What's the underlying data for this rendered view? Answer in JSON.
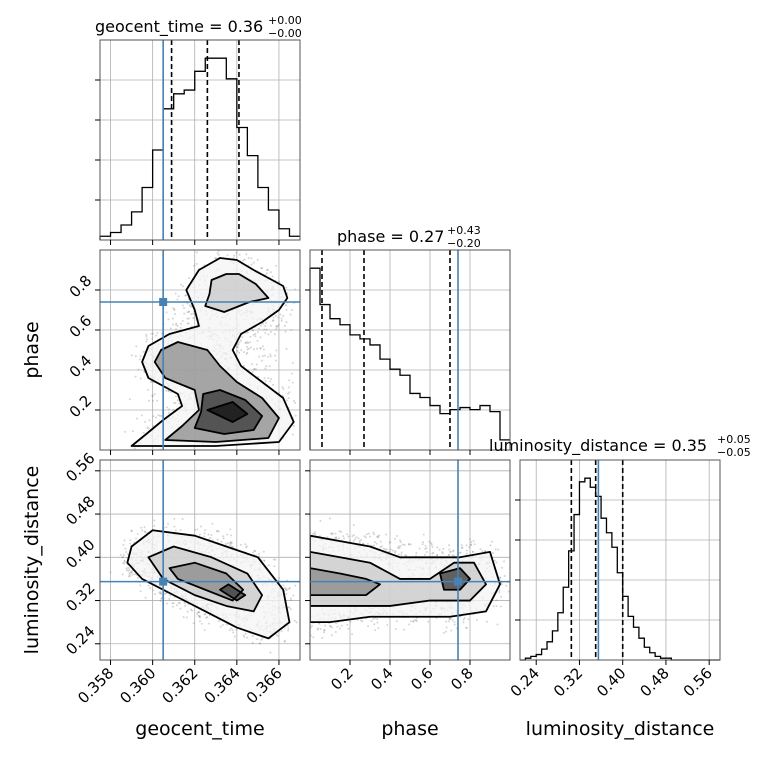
{
  "chart_data": {
    "type": "corner",
    "parameters": [
      "geocent_time",
      "phase",
      "luminosity_distance"
    ],
    "truths": {
      "geocent_time": 0.3605,
      "phase": 0.74,
      "luminosity_distance": 0.355
    },
    "colors": {
      "truth": "#4682b4",
      "hist": "#000000",
      "grid": "#b0b0b0",
      "frame": "#555555"
    },
    "grid": true,
    "diagonal": [
      {
        "param": "geocent_time",
        "title_main": "geocent_time = 0.36",
        "title_sup": "+0.00",
        "title_sub": "−0.00",
        "xlim": [
          0.3575,
          0.367
        ],
        "quantiles": [
          0.3609,
          0.3626,
          0.3641
        ],
        "hist": {
          "edges": [
            0.3575,
            0.358,
            0.3585,
            0.359,
            0.3595,
            0.36,
            0.3605,
            0.361,
            0.3615,
            0.362,
            0.3625,
            0.363,
            0.3635,
            0.364,
            0.3645,
            0.365,
            0.3655,
            0.366,
            0.3665,
            0.367
          ],
          "counts": [
            2,
            4,
            8,
            15,
            28,
            48,
            70,
            78,
            80,
            90,
            97,
            97,
            86,
            60,
            45,
            28,
            16,
            6,
            2
          ]
        }
      },
      {
        "param": "phase",
        "title_main": "phase = 0.27",
        "title_sup": "+0.43",
        "title_sub": "−0.20",
        "xlim": [
          0.0,
          1.0
        ],
        "quantiles": [
          0.06,
          0.27,
          0.7
        ],
        "hist": {
          "edges": [
            0.0,
            0.05,
            0.1,
            0.15,
            0.2,
            0.25,
            0.3,
            0.35,
            0.4,
            0.45,
            0.5,
            0.55,
            0.6,
            0.65,
            0.7,
            0.75,
            0.8,
            0.85,
            0.9,
            0.95,
            1.0
          ],
          "counts": [
            90,
            72,
            65,
            62,
            57,
            55,
            52,
            45,
            40,
            37,
            28,
            26,
            22,
            18,
            20,
            21,
            20,
            22,
            19,
            5
          ]
        }
      },
      {
        "param": "luminosity_distance",
        "title_main": "luminosity_distance = 0.35",
        "title_sup": "+0.05",
        "title_sub": "−0.05",
        "xlim": [
          0.21,
          0.58
        ],
        "quantiles": [
          0.305,
          0.35,
          0.4
        ],
        "hist": {
          "edges": [
            0.21,
            0.22,
            0.23,
            0.24,
            0.25,
            0.26,
            0.27,
            0.28,
            0.29,
            0.3,
            0.31,
            0.32,
            0.33,
            0.34,
            0.35,
            0.36,
            0.37,
            0.38,
            0.39,
            0.4,
            0.41,
            0.42,
            0.43,
            0.44,
            0.45,
            0.46,
            0.47,
            0.48,
            0.49,
            0.5,
            0.51,
            0.52,
            0.53,
            0.54,
            0.55,
            0.56,
            0.57,
            0.58
          ],
          "counts": [
            0,
            1,
            2,
            3,
            6,
            10,
            16,
            26,
            40,
            60,
            80,
            98,
            100,
            95,
            90,
            78,
            70,
            62,
            48,
            35,
            24,
            18,
            12,
            7,
            4,
            2,
            1,
            1,
            0,
            0,
            0,
            0,
            0,
            0,
            0,
            0,
            0
          ]
        }
      }
    ],
    "pairs": [
      {
        "x": "geocent_time",
        "y": "phase",
        "xlim": [
          0.3575,
          0.367
        ],
        "ylim": [
          0.0,
          1.0
        ],
        "contours": [
          [
            [
              0.3632,
              0.96
            ],
            [
              0.3622,
              0.9
            ],
            [
              0.3616,
              0.8
            ],
            [
              0.362,
              0.7
            ],
            [
              0.3622,
              0.62
            ],
            [
              0.3608,
              0.58
            ],
            [
              0.3598,
              0.52
            ],
            [
              0.3595,
              0.44
            ],
            [
              0.3598,
              0.36
            ],
            [
              0.3612,
              0.28
            ],
            [
              0.3614,
              0.22
            ],
            [
              0.3605,
              0.15
            ],
            [
              0.3597,
              0.08
            ],
            [
              0.359,
              0.02
            ],
            [
              0.363,
              0.02
            ],
            [
              0.366,
              0.04
            ],
            [
              0.3667,
              0.14
            ],
            [
              0.3662,
              0.26
            ],
            [
              0.3652,
              0.34
            ],
            [
              0.3642,
              0.42
            ],
            [
              0.3638,
              0.5
            ],
            [
              0.3642,
              0.58
            ],
            [
              0.3652,
              0.64
            ],
            [
              0.366,
              0.7
            ],
            [
              0.3664,
              0.76
            ],
            [
              0.3662,
              0.82
            ],
            [
              0.3655,
              0.86
            ],
            [
              0.3648,
              0.9
            ],
            [
              0.364,
              0.95
            ]
          ],
          [
            [
              0.3635,
              0.88
            ],
            [
              0.3628,
              0.85
            ],
            [
              0.3627,
              0.78
            ],
            [
              0.3625,
              0.72
            ],
            [
              0.3634,
              0.69
            ],
            [
              0.3646,
              0.74
            ],
            [
              0.3655,
              0.76
            ],
            [
              0.3649,
              0.83
            ],
            [
              0.3641,
              0.88
            ]
          ],
          [
            [
              0.3604,
              0.5
            ],
            [
              0.3601,
              0.44
            ],
            [
              0.3606,
              0.36
            ],
            [
              0.362,
              0.3
            ],
            [
              0.3622,
              0.2
            ],
            [
              0.3614,
              0.12
            ],
            [
              0.3606,
              0.05
            ],
            [
              0.363,
              0.04
            ],
            [
              0.3655,
              0.06
            ],
            [
              0.366,
              0.16
            ],
            [
              0.3652,
              0.26
            ],
            [
              0.364,
              0.34
            ],
            [
              0.3632,
              0.42
            ],
            [
              0.3626,
              0.5
            ],
            [
              0.3612,
              0.54
            ]
          ],
          [
            [
              0.3624,
              0.28
            ],
            [
              0.3623,
              0.19
            ],
            [
              0.362,
              0.11
            ],
            [
              0.3634,
              0.08
            ],
            [
              0.3648,
              0.1
            ],
            [
              0.3652,
              0.17
            ],
            [
              0.3644,
              0.25
            ],
            [
              0.3632,
              0.3
            ]
          ],
          [
            [
              0.3626,
              0.2
            ],
            [
              0.3638,
              0.14
            ],
            [
              0.3645,
              0.18
            ],
            [
              0.3638,
              0.24
            ]
          ]
        ]
      },
      {
        "x": "geocent_time",
        "y": "luminosity_distance",
        "xlim": [
          0.3575,
          0.367
        ],
        "ylim": [
          0.21,
          0.58
        ],
        "contours": [
          [
            [
              0.359,
              0.42
            ],
            [
              0.36,
              0.45
            ],
            [
              0.362,
              0.44
            ],
            [
              0.3635,
              0.42
            ],
            [
              0.365,
              0.4
            ],
            [
              0.3662,
              0.34
            ],
            [
              0.3665,
              0.28
            ],
            [
              0.3655,
              0.25
            ],
            [
              0.364,
              0.27
            ],
            [
              0.3625,
              0.3
            ],
            [
              0.361,
              0.33
            ],
            [
              0.3595,
              0.36
            ],
            [
              0.3588,
              0.39
            ]
          ],
          [
            [
              0.3598,
              0.4
            ],
            [
              0.361,
              0.42
            ],
            [
              0.3628,
              0.4
            ],
            [
              0.3645,
              0.37
            ],
            [
              0.3652,
              0.33
            ],
            [
              0.3648,
              0.3
            ],
            [
              0.3635,
              0.31
            ],
            [
              0.362,
              0.33
            ],
            [
              0.3605,
              0.36
            ]
          ],
          [
            [
              0.3608,
              0.38
            ],
            [
              0.362,
              0.39
            ],
            [
              0.3635,
              0.37
            ],
            [
              0.3643,
              0.34
            ],
            [
              0.3638,
              0.32
            ],
            [
              0.3625,
              0.34
            ],
            [
              0.3612,
              0.36
            ]
          ],
          [
            [
              0.3636,
              0.35
            ],
            [
              0.3644,
              0.33
            ],
            [
              0.364,
              0.32
            ],
            [
              0.3632,
              0.34
            ]
          ]
        ]
      },
      {
        "x": "phase",
        "y": "luminosity_distance",
        "xlim": [
          0.0,
          1.0
        ],
        "ylim": [
          0.21,
          0.58
        ],
        "contours": [
          [
            [
              0.0,
              0.44
            ],
            [
              0.15,
              0.43
            ],
            [
              0.3,
              0.42
            ],
            [
              0.45,
              0.4
            ],
            [
              0.6,
              0.4
            ],
            [
              0.75,
              0.4
            ],
            [
              0.9,
              0.41
            ],
            [
              0.95,
              0.35
            ],
            [
              0.88,
              0.3
            ],
            [
              0.7,
              0.29
            ],
            [
              0.5,
              0.29
            ],
            [
              0.3,
              0.29
            ],
            [
              0.1,
              0.28
            ],
            [
              0.0,
              0.28
            ]
          ],
          [
            [
              0.0,
              0.41
            ],
            [
              0.15,
              0.4
            ],
            [
              0.3,
              0.39
            ],
            [
              0.45,
              0.36
            ],
            [
              0.6,
              0.36
            ],
            [
              0.72,
              0.39
            ],
            [
              0.82,
              0.39
            ],
            [
              0.88,
              0.35
            ],
            [
              0.8,
              0.32
            ],
            [
              0.6,
              0.32
            ],
            [
              0.4,
              0.31
            ],
            [
              0.2,
              0.31
            ],
            [
              0.0,
              0.31
            ]
          ],
          [
            [
              0.0,
              0.38
            ],
            [
              0.15,
              0.37
            ],
            [
              0.28,
              0.36
            ],
            [
              0.35,
              0.35
            ],
            [
              0.28,
              0.33
            ],
            [
              0.15,
              0.33
            ],
            [
              0.0,
              0.33
            ]
          ],
          [
            [
              0.65,
              0.37
            ],
            [
              0.75,
              0.38
            ],
            [
              0.8,
              0.36
            ],
            [
              0.75,
              0.34
            ],
            [
              0.67,
              0.34
            ]
          ]
        ]
      }
    ],
    "tick_labels": {
      "geocent_time": [
        "0.358",
        "0.360",
        "0.362",
        "0.364",
        "0.366"
      ],
      "phase_x": [
        "0.2",
        "0.4",
        "0.6",
        "0.8"
      ],
      "phase_y": [
        "0.2",
        "0.4",
        "0.6",
        "0.8"
      ],
      "luminosity_distance": [
        "0.24",
        "0.32",
        "0.40",
        "0.48",
        "0.56"
      ]
    },
    "axis_labels": {
      "x_left": "geocent_time",
      "x_mid": "phase",
      "x_right": "luminosity_distance",
      "y_mid": "phase",
      "y_bottom": "luminosity_distance"
    }
  }
}
